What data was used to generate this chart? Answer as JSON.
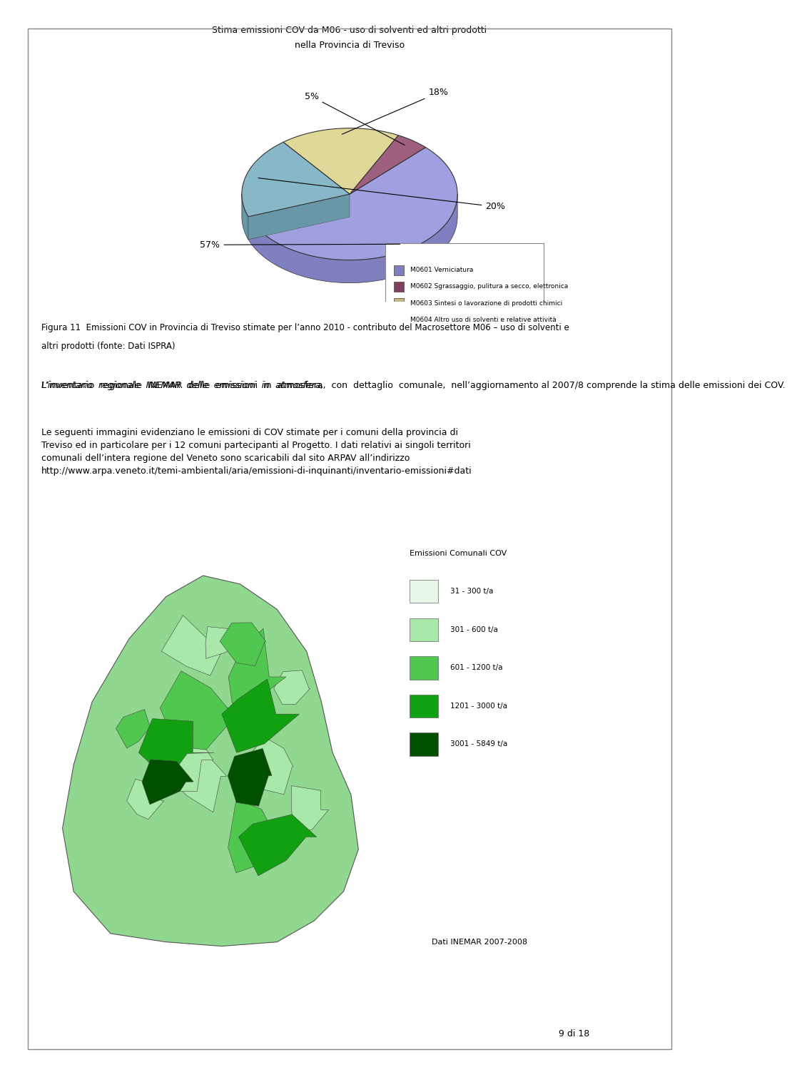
{
  "title_line1": "Stima emissioni COV da M06 - uso di solventi ed altri prodotti",
  "title_line2": "nella Provincia di Treviso",
  "slices": [
    57,
    5,
    18,
    20
  ],
  "labels": [
    "57%",
    "5%",
    "18%",
    "20%"
  ],
  "colors": [
    "#8080c0",
    "#7f3f5f",
    "#c8b878",
    "#6898a8"
  ],
  "top_colors": [
    "#a0a0e0",
    "#9f5f7f",
    "#e0d898",
    "#88b8c8"
  ],
  "legend_labels": [
    "M0601 Verniciatura",
    "M0602 Sgrassaggio, pulitura a secco, elettronica",
    "M0603 Sintesi o lavorazione di prodotti chimici",
    "M0604 Altro uso di solventi e relative attività"
  ],
  "legend_colors": [
    "#8080c0",
    "#7f3f5f",
    "#c8b878",
    "#6898a8"
  ],
  "body_text": [
    "Figura 11  Emissioni COV in Provincia di Treviso stimate per l’anno 2010 - contributo del Macrosettore M06 – uso di solventi e",
    "altri prodotti (fonte: Dati ISPRA)"
  ],
  "paragraph1_italic": "L’inventario  regionale  INEMAR  delle  emissioni  in  atmosfera,",
  "paragraph1_bold": "con  dettaglio  comunale,",
  "paragraph1_rest": "nell’aggiornamento al 2007/8 comprende la stima delle emissioni dei COV.",
  "paragraph2": "Le seguenti immagini evidenziano le emissioni di COV stimate per i comuni della provincia di\nTreviso ed in particolare per i 12 comuni partecipanti al Progetto. I dati relativi ai singoli territori\ncomunali dell’intera regione del Veneto sono scaricabili dal sito ARPAV all’indirizzo\nhttp://www.arpa.veneto.it/temi-ambientali/aria/emissioni-di-inquinanti/inventario-emissioni#dati",
  "map_legend_title": "Emissioni Comunali COV",
  "map_legend_entries": [
    "31 - 300 t/a",
    "301 - 600 t/a",
    "601 - 1200 t/a",
    "1201 - 3000 t/a",
    "3001 - 5849 t/a"
  ],
  "map_legend_colors": [
    "#e8f8e8",
    "#a8e8a8",
    "#50c850",
    "#10a010",
    "#005000"
  ],
  "dati_label": "Dati INEMAR 2007-2008",
  "page_label": "9 di 18",
  "background": "#ffffff",
  "chart_bg": "#ffffff",
  "border_color": "#aaaaaa"
}
